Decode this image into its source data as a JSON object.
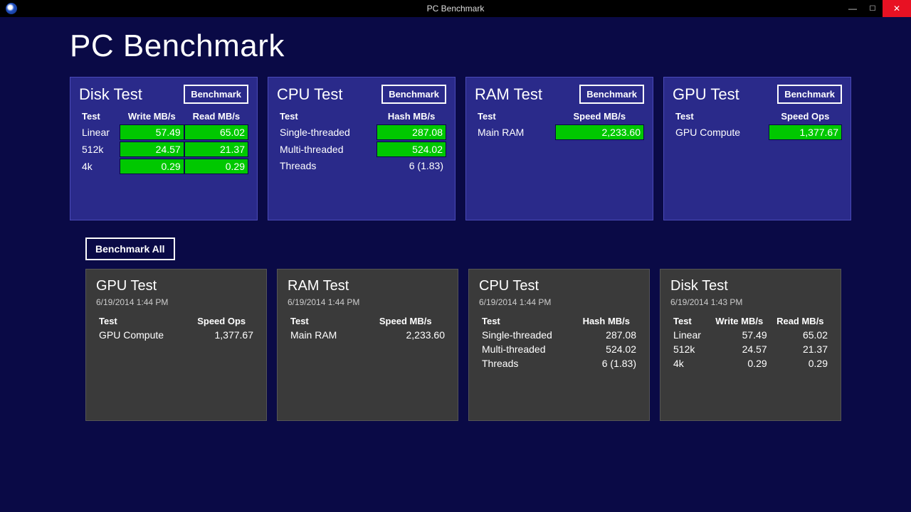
{
  "window": {
    "title": "PC Benchmark"
  },
  "page": {
    "heading": "PC Benchmark",
    "benchmark_label": "Benchmark",
    "benchmark_all_label": "Benchmark All"
  },
  "colors": {
    "app_bg": "#0a0a46",
    "panel_bg": "#2a2a8a",
    "panel_border": "#4a4ab8",
    "value_bg": "#00c800",
    "hist_bg": "#3a3a3a",
    "close_btn": "#e81123"
  },
  "panels": {
    "disk": {
      "title": "Disk Test",
      "headers": [
        "Test",
        "Write MB/s",
        "Read MB/s"
      ],
      "rows": [
        {
          "label": "Linear",
          "write": "57.49",
          "read": "65.02"
        },
        {
          "label": "512k",
          "write": "24.57",
          "read": "21.37"
        },
        {
          "label": "4k",
          "write": "0.29",
          "read": "0.29"
        }
      ]
    },
    "cpu": {
      "title": "CPU Test",
      "headers": [
        "Test",
        "Hash MB/s"
      ],
      "rows": [
        {
          "label": "Single-threaded",
          "value": "287.08",
          "green": true
        },
        {
          "label": "Multi-threaded",
          "value": "524.02",
          "green": true
        },
        {
          "label": "Threads",
          "value": "6 (1.83)",
          "green": false
        }
      ]
    },
    "ram": {
      "title": "RAM Test",
      "headers": [
        "Test",
        "Speed MB/s"
      ],
      "rows": [
        {
          "label": "Main RAM",
          "value": "2,233.60"
        }
      ]
    },
    "gpu": {
      "title": "GPU Test",
      "headers": [
        "Test",
        "Speed Ops"
      ],
      "rows": [
        {
          "label": "GPU Compute",
          "value": "1,377.67"
        }
      ]
    }
  },
  "history": [
    {
      "title": "GPU Test",
      "timestamp": "6/19/2014 1:44 PM",
      "headers": [
        "Test",
        "Speed Ops"
      ],
      "rows": [
        {
          "cells": [
            "GPU Compute",
            "1,377.67"
          ]
        }
      ]
    },
    {
      "title": "RAM Test",
      "timestamp": "6/19/2014 1:44 PM",
      "headers": [
        "Test",
        "Speed MB/s"
      ],
      "rows": [
        {
          "cells": [
            "Main RAM",
            "2,233.60"
          ]
        }
      ]
    },
    {
      "title": "CPU Test",
      "timestamp": "6/19/2014 1:44 PM",
      "headers": [
        "Test",
        "Hash MB/s"
      ],
      "rows": [
        {
          "cells": [
            "Single-threaded",
            "287.08"
          ]
        },
        {
          "cells": [
            "Multi-threaded",
            "524.02"
          ]
        },
        {
          "cells": [
            "Threads",
            "6 (1.83)"
          ]
        }
      ]
    },
    {
      "title": "Disk Test",
      "timestamp": "6/19/2014 1:43 PM",
      "headers": [
        "Test",
        "Write MB/s",
        "Read MB/s"
      ],
      "rows": [
        {
          "cells": [
            "Linear",
            "57.49",
            "65.02"
          ]
        },
        {
          "cells": [
            "512k",
            "24.57",
            "21.37"
          ]
        },
        {
          "cells": [
            "4k",
            "0.29",
            "0.29"
          ]
        }
      ]
    }
  ]
}
